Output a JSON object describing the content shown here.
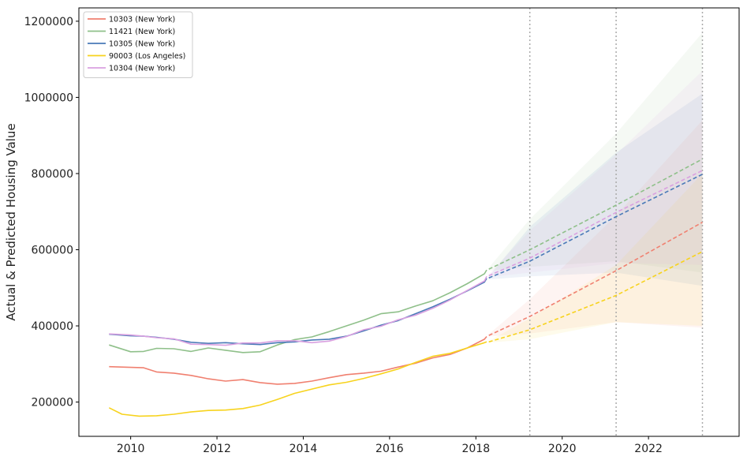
{
  "chart_data": {
    "type": "line",
    "title": "",
    "xlabel": "",
    "ylabel": "Actual & Predicted Housing Value",
    "xlim": [
      2008.8,
      2024.1
    ],
    "ylim": [
      110000,
      1235000
    ],
    "x_ticks": [
      2010,
      2012,
      2014,
      2016,
      2018,
      2020,
      2022
    ],
    "x_tick_labels": [
      "2010",
      "2012",
      "2014",
      "2016",
      "2018",
      "2020",
      "2022"
    ],
    "y_ticks": [
      200000,
      400000,
      600000,
      800000,
      1000000,
      1200000
    ],
    "y_tick_labels": [
      "200000",
      "400000",
      "600000",
      "800000",
      "1000000",
      "1200000"
    ],
    "grid": false,
    "legend_position": "top-left",
    "vertical_reference_lines": [
      2019.25,
      2021.25,
      2023.25
    ],
    "series": [
      {
        "name": "10303 (New York)",
        "color": "#f08070",
        "actual": [
          [
            2009.5,
            293000
          ],
          [
            2010.0,
            291000
          ],
          [
            2010.3,
            290000
          ],
          [
            2010.6,
            279000
          ],
          [
            2011.0,
            276000
          ],
          [
            2011.4,
            270000
          ],
          [
            2011.8,
            261000
          ],
          [
            2012.2,
            255000
          ],
          [
            2012.6,
            259000
          ],
          [
            2013.0,
            251000
          ],
          [
            2013.4,
            247000
          ],
          [
            2013.8,
            249000
          ],
          [
            2014.2,
            255000
          ],
          [
            2014.6,
            264000
          ],
          [
            2015.0,
            272000
          ],
          [
            2015.4,
            276000
          ],
          [
            2015.8,
            281000
          ],
          [
            2016.2,
            292000
          ],
          [
            2016.6,
            302000
          ],
          [
            2017.0,
            316000
          ],
          [
            2017.4,
            325000
          ],
          [
            2017.8,
            342000
          ],
          [
            2018.2,
            365000
          ],
          [
            2018.25,
            372000
          ]
        ],
        "forecast": [
          [
            2018.3,
            375000
          ],
          [
            2019.25,
            425000
          ],
          [
            2021.25,
            545000
          ],
          [
            2023.25,
            672000
          ]
        ],
        "ci_low": [
          [
            2018.3,
            372000
          ],
          [
            2019.25,
            380000
          ],
          [
            2021.25,
            410000
          ],
          [
            2023.25,
            395000
          ]
        ],
        "ci_high": [
          [
            2018.3,
            378000
          ],
          [
            2019.25,
            470000
          ],
          [
            2021.25,
            690000
          ],
          [
            2023.25,
            940000
          ]
        ]
      },
      {
        "name": "11421 (New York)",
        "color": "#8fc08a",
        "actual": [
          [
            2009.5,
            350000
          ],
          [
            2010.0,
            332000
          ],
          [
            2010.3,
            333000
          ],
          [
            2010.6,
            341000
          ],
          [
            2011.0,
            340000
          ],
          [
            2011.4,
            333000
          ],
          [
            2011.8,
            342000
          ],
          [
            2012.2,
            336000
          ],
          [
            2012.6,
            330000
          ],
          [
            2013.0,
            332000
          ],
          [
            2013.4,
            350000
          ],
          [
            2013.8,
            364000
          ],
          [
            2014.2,
            371000
          ],
          [
            2014.6,
            385000
          ],
          [
            2015.0,
            400000
          ],
          [
            2015.4,
            415000
          ],
          [
            2015.8,
            432000
          ],
          [
            2016.2,
            437000
          ],
          [
            2016.6,
            452000
          ],
          [
            2017.0,
            466000
          ],
          [
            2017.4,
            487000
          ],
          [
            2017.8,
            511000
          ],
          [
            2018.2,
            537000
          ],
          [
            2018.25,
            547000
          ]
        ],
        "forecast": [
          [
            2018.3,
            549000
          ],
          [
            2019.25,
            600000
          ],
          [
            2021.25,
            717000
          ],
          [
            2023.25,
            838000
          ]
        ],
        "ci_low": [
          [
            2018.3,
            545000
          ],
          [
            2019.25,
            555000
          ],
          [
            2021.25,
            570000
          ],
          [
            2023.25,
            540000
          ]
        ],
        "ci_high": [
          [
            2018.3,
            553000
          ],
          [
            2019.25,
            680000
          ],
          [
            2021.25,
            905000
          ],
          [
            2023.25,
            1170000
          ]
        ]
      },
      {
        "name": "10305 (New York)",
        "color": "#4a7ab8",
        "actual": [
          [
            2009.5,
            378000
          ],
          [
            2010.0,
            374000
          ],
          [
            2010.3,
            373000
          ],
          [
            2010.6,
            370000
          ],
          [
            2011.0,
            365000
          ],
          [
            2011.4,
            357000
          ],
          [
            2011.8,
            354000
          ],
          [
            2012.2,
            356000
          ],
          [
            2012.6,
            353000
          ],
          [
            2013.0,
            351000
          ],
          [
            2013.4,
            356000
          ],
          [
            2013.8,
            358000
          ],
          [
            2014.2,
            363000
          ],
          [
            2014.6,
            365000
          ],
          [
            2015.0,
            373000
          ],
          [
            2015.4,
            387000
          ],
          [
            2015.8,
            402000
          ],
          [
            2016.2,
            414000
          ],
          [
            2016.6,
            432000
          ],
          [
            2017.0,
            450000
          ],
          [
            2017.4,
            470000
          ],
          [
            2017.8,
            492000
          ],
          [
            2018.2,
            515000
          ],
          [
            2018.25,
            525000
          ]
        ],
        "forecast": [
          [
            2018.3,
            526000
          ],
          [
            2019.25,
            570000
          ],
          [
            2021.25,
            687000
          ],
          [
            2023.25,
            798000
          ]
        ],
        "ci_low": [
          [
            2018.3,
            522000
          ],
          [
            2019.25,
            530000
          ],
          [
            2021.25,
            540000
          ],
          [
            2023.25,
            505000
          ]
        ],
        "ci_high": [
          [
            2018.3,
            530000
          ],
          [
            2019.25,
            660000
          ],
          [
            2021.25,
            855000
          ],
          [
            2023.25,
            1010000
          ]
        ]
      },
      {
        "name": "90003 (Los Angeles)",
        "color": "#f7d31e",
        "actual": [
          [
            2009.5,
            185000
          ],
          [
            2009.8,
            168000
          ],
          [
            2010.2,
            163000
          ],
          [
            2010.6,
            164000
          ],
          [
            2011.0,
            168000
          ],
          [
            2011.4,
            174000
          ],
          [
            2011.8,
            178000
          ],
          [
            2012.2,
            179000
          ],
          [
            2012.6,
            183000
          ],
          [
            2013.0,
            192000
          ],
          [
            2013.4,
            207000
          ],
          [
            2013.8,
            223000
          ],
          [
            2014.2,
            234000
          ],
          [
            2014.6,
            245000
          ],
          [
            2015.0,
            252000
          ],
          [
            2015.4,
            262000
          ],
          [
            2015.8,
            274000
          ],
          [
            2016.2,
            287000
          ],
          [
            2016.6,
            304000
          ],
          [
            2017.0,
            320000
          ],
          [
            2017.4,
            328000
          ],
          [
            2017.8,
            342000
          ],
          [
            2018.2,
            356000
          ],
          [
            2018.25,
            358000
          ]
        ],
        "forecast": [
          [
            2018.3,
            358000
          ],
          [
            2019.25,
            390000
          ],
          [
            2021.25,
            480000
          ],
          [
            2023.25,
            595000
          ]
        ],
        "ci_low": [
          [
            2018.3,
            356000
          ],
          [
            2019.25,
            365000
          ],
          [
            2021.25,
            410000
          ],
          [
            2023.25,
            400000
          ]
        ],
        "ci_high": [
          [
            2018.3,
            360000
          ],
          [
            2019.25,
            420000
          ],
          [
            2021.25,
            560000
          ],
          [
            2023.25,
            800000
          ]
        ]
      },
      {
        "name": "10304 (New York)",
        "color": "#d9a0e0",
        "actual": [
          [
            2009.5,
            379000
          ],
          [
            2010.0,
            376000
          ],
          [
            2010.3,
            373000
          ],
          [
            2010.6,
            369000
          ],
          [
            2011.0,
            366000
          ],
          [
            2011.4,
            352000
          ],
          [
            2011.8,
            351000
          ],
          [
            2012.2,
            349000
          ],
          [
            2012.6,
            355000
          ],
          [
            2013.0,
            355000
          ],
          [
            2013.4,
            361000
          ],
          [
            2013.8,
            361000
          ],
          [
            2014.2,
            356000
          ],
          [
            2014.6,
            360000
          ],
          [
            2015.0,
            372000
          ],
          [
            2015.4,
            390000
          ],
          [
            2015.8,
            399000
          ],
          [
            2016.2,
            416000
          ],
          [
            2016.6,
            428000
          ],
          [
            2017.0,
            446000
          ],
          [
            2017.4,
            468000
          ],
          [
            2017.8,
            493000
          ],
          [
            2018.2,
            518000
          ],
          [
            2018.25,
            530000
          ]
        ],
        "forecast": [
          [
            2018.3,
            532000
          ],
          [
            2019.25,
            578000
          ],
          [
            2021.25,
            698000
          ],
          [
            2023.25,
            808000
          ]
        ],
        "ci_low": [
          [
            2018.3,
            528000
          ],
          [
            2019.25,
            540000
          ],
          [
            2021.25,
            565000
          ],
          [
            2023.25,
            560000
          ]
        ],
        "ci_high": [
          [
            2018.3,
            536000
          ],
          [
            2019.25,
            650000
          ],
          [
            2021.25,
            850000
          ],
          [
            2023.25,
            1070000
          ]
        ]
      }
    ]
  }
}
